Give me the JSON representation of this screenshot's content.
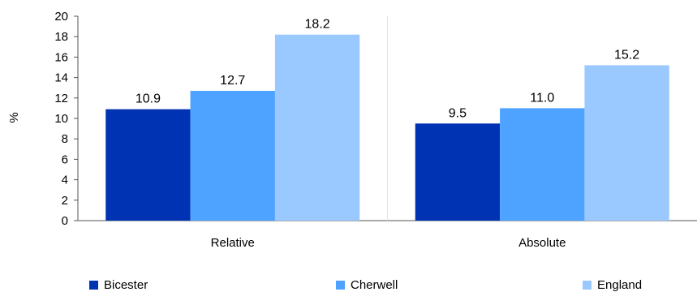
{
  "chart_data": {
    "type": "bar",
    "ylabel": "%",
    "xlabel": "",
    "categories": [
      "Relative",
      "Absolute"
    ],
    "series": [
      {
        "name": "Bicester",
        "color": "#0033b3",
        "values": [
          10.9,
          9.5
        ]
      },
      {
        "name": "Cherwell",
        "color": "#4da3ff",
        "values": [
          12.7,
          11.0
        ]
      },
      {
        "name": "England",
        "color": "#99c9ff",
        "values": [
          18.2,
          15.2
        ]
      }
    ],
    "ylim": [
      0,
      20
    ],
    "yticks": [
      0,
      2,
      4,
      6,
      8,
      10,
      12,
      14,
      16,
      18,
      20
    ],
    "value_labels": [
      [
        "10.9",
        "9.5"
      ],
      [
        "12.7",
        "11.0"
      ],
      [
        "18.2",
        "15.2"
      ]
    ],
    "grid": false,
    "legend_position": "bottom"
  }
}
